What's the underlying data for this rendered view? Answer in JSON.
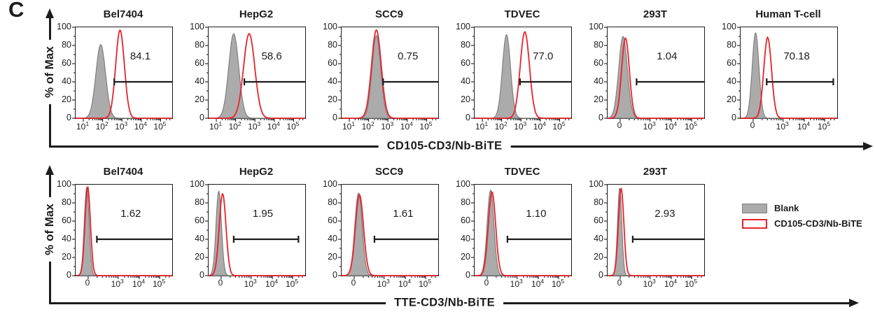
{
  "panel_label": "C",
  "colors": {
    "blank_fill": "#ababab",
    "blank_stroke": "#7f7f7f",
    "bite_red": "#e8232b",
    "axis_ink": "#1c1c1c"
  },
  "y_axis": {
    "label": "% of Max",
    "ticks": [
      100,
      80,
      60,
      40,
      20,
      0
    ]
  },
  "legend": {
    "items": [
      {
        "label": "Blank",
        "swatch": "gray-filled"
      },
      {
        "label": "CD105-CD3/Nb-BiTE",
        "swatch": "red-outline"
      }
    ]
  },
  "chart_data": {
    "type": "histogram",
    "description": "Flow cytometry overlay histograms (% of Max vs fluorescence intensity), Blank vs BiTE staining, with percent-positive gates at 40% of max",
    "gate_level_percent_of_max": 40,
    "rows": [
      {
        "x_axis_label": "CD105-CD3/Nb-BiTE",
        "plots": [
          {
            "title": "Bel7404",
            "gate_percent": "84.1",
            "x_ticks": [
              "10^1",
              "10^2",
              "10^3",
              "10^4",
              "10^5"
            ],
            "x_tick_pos": [
              0.08,
              0.28,
              0.48,
              0.68,
              0.88
            ],
            "blank": {
              "center": 0.26,
              "sigma": 0.05,
              "peak": 81
            },
            "bite": {
              "center": 0.46,
              "sigma": 0.045,
              "peak": 97
            },
            "gate": {
              "start": 0.4,
              "end": 1
            }
          },
          {
            "title": "HepG2",
            "gate_percent": "58.6",
            "x_ticks": [
              "10^1",
              "10^2",
              "10^3",
              "10^4",
              "10^5"
            ],
            "x_tick_pos": [
              0.08,
              0.28,
              0.48,
              0.68,
              0.88
            ],
            "blank": {
              "center": 0.26,
              "sigma": 0.052,
              "peak": 93
            },
            "bite": {
              "center": 0.42,
              "sigma": 0.058,
              "peak": 93
            },
            "gate": {
              "start": 0.37,
              "end": 1
            }
          },
          {
            "title": "SCC9",
            "gate_percent": "0.75",
            "x_ticks": [
              "10^1",
              "10^2",
              "10^3",
              "10^4",
              "10^5"
            ],
            "x_tick_pos": [
              0.08,
              0.28,
              0.48,
              0.68,
              0.88
            ],
            "blank": {
              "center": 0.36,
              "sigma": 0.045,
              "peak": 91
            },
            "bite": {
              "center": 0.36,
              "sigma": 0.05,
              "peak": 97
            },
            "gate": {
              "start": 0.43,
              "end": 1
            }
          },
          {
            "title": "TDVEC",
            "gate_percent": "77.0",
            "x_ticks": [
              "10^1",
              "10^2",
              "10^3",
              "10^4",
              "10^5"
            ],
            "x_tick_pos": [
              0.08,
              0.28,
              0.48,
              0.68,
              0.88
            ],
            "blank": {
              "center": 0.33,
              "sigma": 0.042,
              "peak": 92
            },
            "bite": {
              "center": 0.52,
              "sigma": 0.048,
              "peak": 95
            },
            "gate": {
              "start": 0.47,
              "end": 1
            }
          },
          {
            "title": "293T",
            "gate_percent": "1.04",
            "x_ticks": [
              "0",
              "10^3",
              "10^4",
              "10^5"
            ],
            "x_tick_pos": [
              0.13,
              0.44,
              0.66,
              0.87
            ],
            "blank": {
              "center": 0.16,
              "sigma": 0.045,
              "peak": 90
            },
            "bite": {
              "center": 0.185,
              "sigma": 0.04,
              "peak": 88
            },
            "gate": {
              "start": 0.3,
              "end": 1
            }
          },
          {
            "title": "Human T-cell",
            "gate_percent": "70.18",
            "x_ticks": [
              "0",
              "10^3",
              "10^4",
              "10^5"
            ],
            "x_tick_pos": [
              0.13,
              0.44,
              0.66,
              0.87
            ],
            "blank": {
              "center": 0.155,
              "sigma": 0.035,
              "peak": 94
            },
            "bite": {
              "center": 0.28,
              "sigma": 0.04,
              "peak": 89
            },
            "gate": {
              "start": 0.27,
              "end": 0.96
            }
          }
        ]
      },
      {
        "x_axis_label": "TTE-CD3/Nb-BiTE",
        "plots": [
          {
            "title": "Bel7404",
            "gate_percent": "1.62",
            "x_ticks": [
              "0",
              "10^3",
              "10^4",
              "10^5"
            ],
            "x_tick_pos": [
              0.13,
              0.44,
              0.66,
              0.87
            ],
            "blank": {
              "center": 0.115,
              "sigma": 0.025,
              "peak": 97
            },
            "bite": {
              "center": 0.125,
              "sigma": 0.028,
              "peak": 98
            },
            "gate": {
              "start": 0.22,
              "end": 1
            }
          },
          {
            "title": "HepG2",
            "gate_percent": "1.95",
            "x_ticks": [
              "0",
              "10^3",
              "10^4",
              "10^5"
            ],
            "x_tick_pos": [
              0.13,
              0.44,
              0.66,
              0.87
            ],
            "blank": {
              "center": 0.105,
              "sigma": 0.028,
              "peak": 93
            },
            "bite": {
              "center": 0.145,
              "sigma": 0.035,
              "peak": 90
            },
            "gate": {
              "start": 0.26,
              "end": 0.93
            }
          },
          {
            "title": "SCC9",
            "gate_percent": "1.61",
            "x_ticks": [
              "0",
              "10^3",
              "10^4",
              "10^5"
            ],
            "x_tick_pos": [
              0.13,
              0.44,
              0.66,
              0.87
            ],
            "blank": {
              "center": 0.175,
              "sigma": 0.038,
              "peak": 91
            },
            "bite": {
              "center": 0.185,
              "sigma": 0.042,
              "peak": 89
            },
            "gate": {
              "start": 0.34,
              "end": 1
            }
          },
          {
            "title": "TDVEC",
            "gate_percent": "1.10",
            "x_ticks": [
              "0",
              "10^3",
              "10^4",
              "10^5"
            ],
            "x_tick_pos": [
              0.13,
              0.44,
              0.66,
              0.87
            ],
            "blank": {
              "center": 0.165,
              "sigma": 0.035,
              "peak": 94
            },
            "bite": {
              "center": 0.18,
              "sigma": 0.038,
              "peak": 92
            },
            "gate": {
              "start": 0.34,
              "end": 1
            }
          },
          {
            "title": "293T",
            "gate_percent": "2.93",
            "x_ticks": [
              "0",
              "10^3",
              "10^4",
              "10^5"
            ],
            "x_tick_pos": [
              0.13,
              0.44,
              0.66,
              0.87
            ],
            "blank": {
              "center": 0.125,
              "sigma": 0.022,
              "peak": 97
            },
            "bite": {
              "center": 0.14,
              "sigma": 0.028,
              "peak": 96
            },
            "gate": {
              "start": 0.26,
              "end": 1
            }
          }
        ]
      }
    ]
  }
}
